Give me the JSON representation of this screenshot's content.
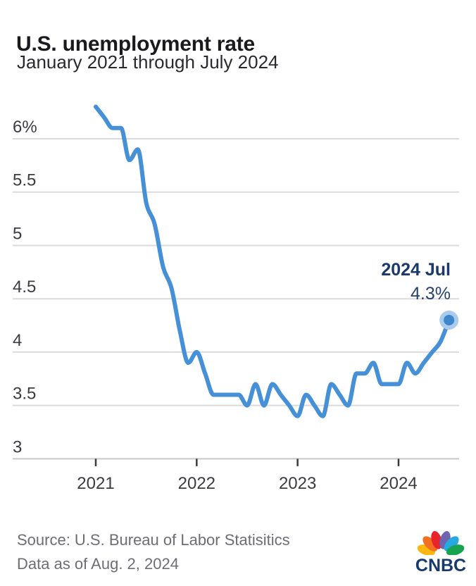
{
  "header": {
    "title": "U.S. unemployment rate",
    "subtitle": "January 2021 through July 2024"
  },
  "chart_data": {
    "type": "line",
    "title": "U.S. unemployment rate",
    "subtitle": "January 2021 through July 2024",
    "unit": "percent",
    "legend_position": "none",
    "x": [
      "2021-01",
      "2021-02",
      "2021-03",
      "2021-04",
      "2021-05",
      "2021-06",
      "2021-07",
      "2021-08",
      "2021-09",
      "2021-10",
      "2021-11",
      "2021-12",
      "2022-01",
      "2022-02",
      "2022-03",
      "2022-04",
      "2022-05",
      "2022-06",
      "2022-07",
      "2022-08",
      "2022-09",
      "2022-10",
      "2022-11",
      "2022-12",
      "2023-01",
      "2023-02",
      "2023-03",
      "2023-04",
      "2023-05",
      "2023-06",
      "2023-07",
      "2023-08",
      "2023-09",
      "2023-10",
      "2023-11",
      "2023-12",
      "2024-01",
      "2024-02",
      "2024-03",
      "2024-04",
      "2024-05",
      "2024-06",
      "2024-07"
    ],
    "series": [
      {
        "name": "U.S. unemployment rate",
        "color": "#4590d7",
        "values": [
          6.3,
          6.2,
          6.1,
          6.1,
          5.8,
          5.9,
          5.4,
          5.2,
          4.8,
          4.6,
          4.2,
          3.9,
          4.0,
          3.8,
          3.6,
          3.6,
          3.6,
          3.6,
          3.5,
          3.7,
          3.5,
          3.7,
          3.6,
          3.5,
          3.4,
          3.6,
          3.5,
          3.4,
          3.7,
          3.6,
          3.5,
          3.8,
          3.8,
          3.9,
          3.7,
          3.7,
          3.7,
          3.9,
          3.8,
          3.9,
          4.0,
          4.1,
          4.3
        ]
      }
    ],
    "y_axis": {
      "gridlines": true,
      "range": [
        2.85,
        6.5
      ],
      "ticks": [
        {
          "value": 6.0,
          "label": "6%"
        },
        {
          "value": 5.5,
          "label": "5.5"
        },
        {
          "value": 5.0,
          "label": "5"
        },
        {
          "value": 4.5,
          "label": "4.5"
        },
        {
          "value": 4.0,
          "label": "4"
        },
        {
          "value": 3.5,
          "label": "3.5"
        },
        {
          "value": 3.0,
          "label": "3"
        }
      ]
    },
    "x_axis": {
      "ticks": [
        {
          "label": "2021",
          "month_index": 0
        },
        {
          "label": "2022",
          "month_index": 12
        },
        {
          "label": "2023",
          "month_index": 24
        },
        {
          "label": "2024",
          "month_index": 36
        }
      ]
    },
    "annotation": {
      "title": "2024 Jul",
      "value": "4.3%"
    },
    "end_marker": {
      "halo_color": "#a9cbec",
      "dot_color": "#3e87cd"
    }
  },
  "footer": {
    "source": "Source: U.S. Bureau of Labor Statisitics",
    "data_as_of": "Data as of Aug. 2, 2024"
  },
  "logo": {
    "wordmark": "CNBC",
    "wordmark_color": "#173a6d",
    "feather_colors": [
      "#fcb711",
      "#f37021",
      "#e8232a",
      "#6f64ad",
      "#28a8e0",
      "#16a450"
    ],
    "feather_names": [
      "yellow",
      "orange",
      "red",
      "purple",
      "blue",
      "green"
    ]
  }
}
